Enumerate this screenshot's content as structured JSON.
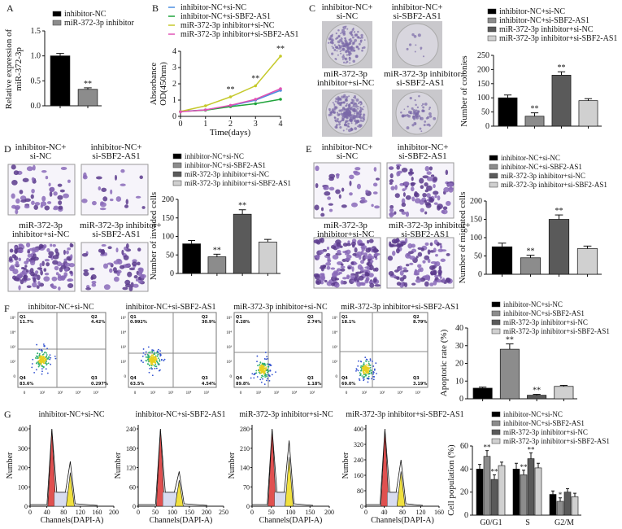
{
  "panel_labels": [
    "A",
    "B",
    "C",
    "D",
    "E",
    "F",
    "G"
  ],
  "groups": [
    "inhibitor-NC+si-NC",
    "inhibitor-NC+si-SBF2-AS1",
    "miR-372-3p inhibitor+si-NC",
    "miR-372-3p inhibitor+si-SBF2-AS1"
  ],
  "bar_colors": [
    "#000000",
    "#8c8c8c",
    "#5a5a5a",
    "#d0d0d0"
  ],
  "line_colors": [
    "#4a8fe0",
    "#1fa33a",
    "#c5c92b",
    "#e052b5"
  ],
  "image_captions": {
    "C": [
      "inhibitor-NC+\nsi-NC",
      "inhibitor-NC+\nsi-SBF2-AS1",
      "miR-372-3p\ninhibitor+si-NC",
      "miR-372-3p inhibitor+\nsi-SBF2-AS1"
    ],
    "D": [
      "inhibitor-NC+\nsi-NC",
      "inhibitor-NC+\nsi-SBF2-AS1",
      "miR-372-3p\ninhibitor+si-NC",
      "miR-372-3p inhibitor+\nsi-SBF2-AS1"
    ],
    "E": [
      "inhibitor-NC+\nsi-NC",
      "inhibitor-NC+\nsi-SBF2-AS1",
      "miR-372-3p\ninhibitor+si-NC",
      "miR-372-3p inhibitor+\nsi-SBF2-AS1"
    ]
  },
  "flow": {
    "titles": [
      "inhibitor-NC+si-NC",
      "inhibitor-NC+si-SBF2-AS1",
      "miR-372-3p inhibitor+si-NC",
      "miR-372-3p inhibitor+si-SBF2-AS1"
    ],
    "quadrants": [
      {
        "Q1": "11.7%",
        "Q2": "4.42%",
        "Q3": "0.297%",
        "Q4": "83.6%"
      },
      {
        "Q1": "0.992%",
        "Q2": "30.9%",
        "Q3": "4.54%",
        "Q4": "63.5%"
      },
      {
        "Q1": "6.28%",
        "Q2": "2.74%",
        "Q3": "1.18%",
        "Q4": "89.8%"
      },
      {
        "Q1": "18.1%",
        "Q2": "8.79%",
        "Q3": "3.19%",
        "Q4": "69.0%"
      }
    ],
    "axis_ticks": [
      "0",
      "10²",
      "10³",
      "10⁴",
      "10⁵"
    ]
  },
  "histograms": {
    "titles": [
      "inhibitor-NC+si-NC",
      "inhibitor-NC+si-SBF2-AS1",
      "miR-372-3p inhibitor+si-NC",
      "miR-372-3p inhibitor+si-SBF2-AS1"
    ],
    "ylabel": "Number",
    "xlabel": "Channels(DAPI-A)",
    "yticks": [
      [
        0,
        100,
        200,
        300,
        400
      ],
      [
        0,
        60,
        120,
        180,
        240
      ],
      [
        0,
        70,
        140,
        210,
        280
      ],
      [
        0,
        80,
        160,
        240,
        320,
        400
      ]
    ],
    "xticks": [
      [
        0,
        40,
        80,
        120,
        160,
        200
      ],
      [
        0,
        50,
        100,
        150,
        200,
        250
      ],
      [
        0,
        50,
        100,
        150,
        200
      ],
      [
        0,
        40,
        80,
        120,
        160
      ]
    ]
  },
  "chart_data": [
    {
      "panel": "A",
      "type": "bar",
      "categories": [
        "inhibitor-NC",
        "miR-372-3p inhibitor"
      ],
      "values": [
        1.0,
        0.33
      ],
      "errors": [
        0.05,
        0.03
      ],
      "colors": [
        "#000000",
        "#8c8c8c"
      ],
      "ylabel": "Relative expression of\nmiR-372-3p",
      "ylim": [
        0,
        1.5
      ],
      "yticks": [
        0.0,
        0.5,
        1.0,
        1.5
      ],
      "yfmt": 1,
      "annotations": [
        "",
        "**"
      ]
    },
    {
      "panel": "B",
      "type": "line",
      "x": [
        0,
        1,
        2,
        3,
        4
      ],
      "series": [
        {
          "name": "inhibitor-NC+si-NC",
          "values": [
            0.3,
            0.4,
            0.65,
            1.0,
            1.6
          ]
        },
        {
          "name": "inhibitor-NC+si-SBF2-AS1",
          "values": [
            0.3,
            0.38,
            0.6,
            0.78,
            1.05
          ]
        },
        {
          "name": "miR-372-3p inhibitor+si-NC",
          "values": [
            0.3,
            0.65,
            1.2,
            1.88,
            3.7
          ]
        },
        {
          "name": "miR-372-3p inhibitor+si-SBF2-AS1",
          "values": [
            0.28,
            0.4,
            0.68,
            1.05,
            1.7
          ]
        }
      ],
      "xlabel": "Time(days)",
      "ylabel": "Absorbance\nOD(450nm)",
      "ylim": [
        0,
        4
      ],
      "xlim": [
        0,
        4
      ],
      "annotations": [
        {
          "x": 2,
          "text": "**"
        },
        {
          "x": 3,
          "text": "**"
        },
        {
          "x": 4,
          "text": "**"
        }
      ]
    },
    {
      "panel": "C",
      "type": "bar",
      "categories": [
        "inhibitor-NC+si-NC",
        "inhibitor-NC+si-SBF2-AS1",
        "miR-372-3p inhibitor+si-NC",
        "miR-372-3p inhibitor+si-SBF2-AS1"
      ],
      "values": [
        100,
        35,
        180,
        90
      ],
      "errors": [
        10,
        12,
        12,
        7
      ],
      "ylabel": "Number of colonies",
      "ylim": [
        0,
        250
      ],
      "yticks": [
        0,
        50,
        100,
        150,
        200,
        250
      ],
      "annotations": [
        "",
        "**",
        "**",
        ""
      ]
    },
    {
      "panel": "D",
      "type": "bar",
      "categories": [
        "inhibitor-NC+si-NC",
        "inhibitor-NC+si-SBF2-AS1",
        "miR-372-3p inhibitor+si-NC",
        "miR-372-3p inhibitor+si-SBF2-AS1"
      ],
      "values": [
        80,
        45,
        160,
        85
      ],
      "errors": [
        9,
        7,
        12,
        7
      ],
      "ylabel": "Number of invaded cells",
      "ylim": [
        0,
        200
      ],
      "yticks": [
        0,
        50,
        100,
        150,
        200
      ],
      "annotations": [
        "",
        "**",
        "**",
        ""
      ]
    },
    {
      "panel": "E",
      "type": "bar",
      "categories": [
        "inhibitor-NC+si-NC",
        "inhibitor-NC+si-SBF2-AS1",
        "miR-372-3p inhibitor+si-NC",
        "miR-372-3p inhibitor+si-SBF2-AS1"
      ],
      "values": [
        75,
        45,
        150,
        70
      ],
      "errors": [
        10,
        7,
        12,
        7
      ],
      "ylabel": "Number of migrated cells",
      "ylim": [
        0,
        200
      ],
      "yticks": [
        0,
        50,
        100,
        150,
        200
      ],
      "annotations": [
        "",
        "**",
        "**",
        ""
      ]
    },
    {
      "panel": "F",
      "type": "bar",
      "categories": [
        "inhibitor-NC+si-NC",
        "inhibitor-NC+si-SBF2-AS1",
        "miR-372-3p inhibitor+si-NC",
        "miR-372-3p inhibitor+si-SBF2-AS1"
      ],
      "values": [
        6,
        28,
        2,
        7
      ],
      "errors": [
        0.6,
        3,
        0.5,
        0.6
      ],
      "ylabel": "Apoptotic rate (%)",
      "ylim": [
        0,
        40
      ],
      "yticks": [
        0,
        10,
        20,
        30,
        40
      ],
      "annotations": [
        "",
        "**",
        "**",
        ""
      ]
    },
    {
      "panel": "G",
      "type": "bar",
      "categories": [
        "G0/G1",
        "S",
        "G2/M"
      ],
      "series": [
        {
          "name": "inhibitor-NC+si-NC",
          "values": [
            40,
            40,
            18
          ]
        },
        {
          "name": "inhibitor-NC+si-SBF2-AS1",
          "values": [
            51,
            35,
            12
          ]
        },
        {
          "name": "miR-372-3p inhibitor+si-NC",
          "values": [
            31,
            49,
            20
          ]
        },
        {
          "name": "miR-372-3p inhibitor+si-SBF2-AS1",
          "values": [
            43,
            41,
            16
          ]
        }
      ],
      "errors": [
        [
          4,
          5,
          3
        ],
        [
          5,
          4,
          3
        ],
        [
          4,
          5,
          3
        ],
        [
          3,
          4,
          3
        ]
      ],
      "annotations": [
        [
          "",
          "",
          ""
        ],
        [
          "**",
          "**",
          "*"
        ],
        [
          "**",
          "**",
          ""
        ],
        [
          "",
          "",
          ""
        ]
      ],
      "ylabel": "Cell population (%)",
      "ylim": [
        0,
        60
      ],
      "yticks": [
        0,
        20,
        40,
        60
      ]
    }
  ]
}
